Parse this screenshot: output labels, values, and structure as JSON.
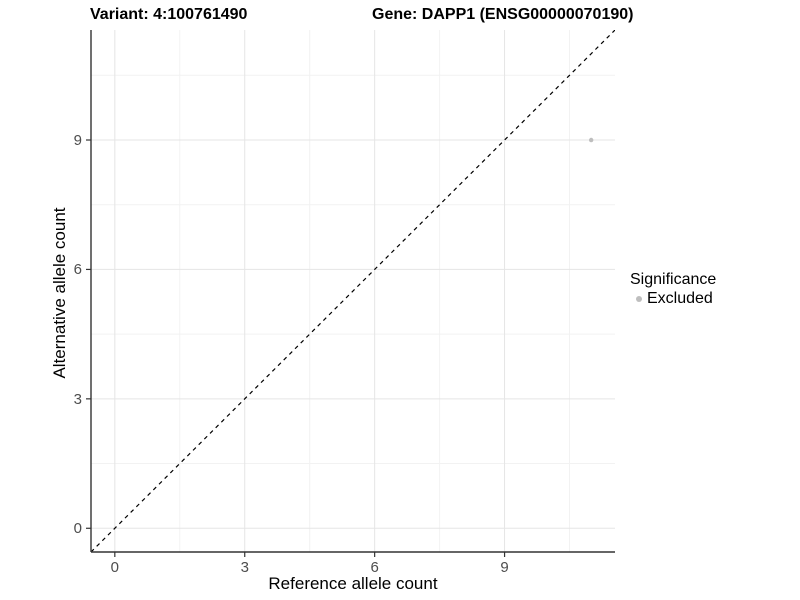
{
  "chart_data": {
    "type": "scatter",
    "title_left": "Variant: 4:100761490",
    "title_right": "Gene: DAPP1 (ENSG00000070190)",
    "xlabel": "Reference allele count",
    "ylabel": "Alternative allele count",
    "xlim": [
      -0.55,
      11.55
    ],
    "ylim": [
      -0.55,
      11.55
    ],
    "xticks": [
      0,
      3,
      6,
      9
    ],
    "yticks": [
      0,
      3,
      6,
      9
    ],
    "xticks_minor": [
      1.5,
      4.5,
      7.5,
      10.5
    ],
    "yticks_minor": [
      1.5,
      4.5,
      7.5,
      10.5
    ],
    "grid": "on",
    "abline": {
      "slope": 1,
      "intercept": 0,
      "style": "dashed",
      "color": "#000000"
    },
    "series": [
      {
        "name": "Excluded",
        "color": "#bebebe",
        "points": [
          {
            "x": 11,
            "y": 9
          }
        ]
      }
    ],
    "legend": {
      "title": "Significance",
      "position": "right",
      "items": [
        {
          "label": "Excluded",
          "color": "#bebebe"
        }
      ]
    },
    "colors": {
      "grid_major": "#e5e5e5",
      "grid_minor": "#f2f2f2",
      "axis_line": "#333333",
      "tick_mark": "#333333",
      "tick_text": "#4d4d4d"
    }
  }
}
